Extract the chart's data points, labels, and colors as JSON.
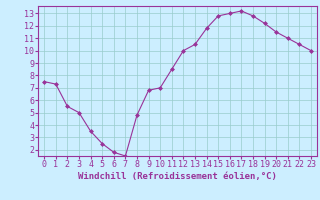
{
  "x": [
    0,
    1,
    2,
    3,
    4,
    5,
    6,
    7,
    8,
    9,
    10,
    11,
    12,
    13,
    14,
    15,
    16,
    17,
    18,
    19,
    20,
    21,
    22,
    23
  ],
  "y": [
    7.5,
    7.3,
    5.5,
    5.0,
    3.5,
    2.5,
    1.8,
    1.5,
    4.8,
    6.8,
    7.0,
    8.5,
    10.0,
    10.5,
    11.8,
    12.8,
    13.0,
    13.2,
    12.8,
    12.2,
    11.5,
    11.0,
    10.5,
    10.0
  ],
  "line_color": "#993399",
  "marker_color": "#993399",
  "bg_color": "#cceeff",
  "grid_color": "#99cccc",
  "axis_color": "#993399",
  "xlabel": "Windchill (Refroidissement éolien,°C)",
  "xlim": [
    -0.5,
    23.5
  ],
  "ylim": [
    1.5,
    13.6
  ],
  "yticks": [
    2,
    3,
    4,
    5,
    6,
    7,
    8,
    9,
    10,
    11,
    12,
    13
  ],
  "xticks": [
    0,
    1,
    2,
    3,
    4,
    5,
    6,
    7,
    8,
    9,
    10,
    11,
    12,
    13,
    14,
    15,
    16,
    17,
    18,
    19,
    20,
    21,
    22,
    23
  ],
  "tick_fontsize": 6.0,
  "label_fontsize": 6.5
}
